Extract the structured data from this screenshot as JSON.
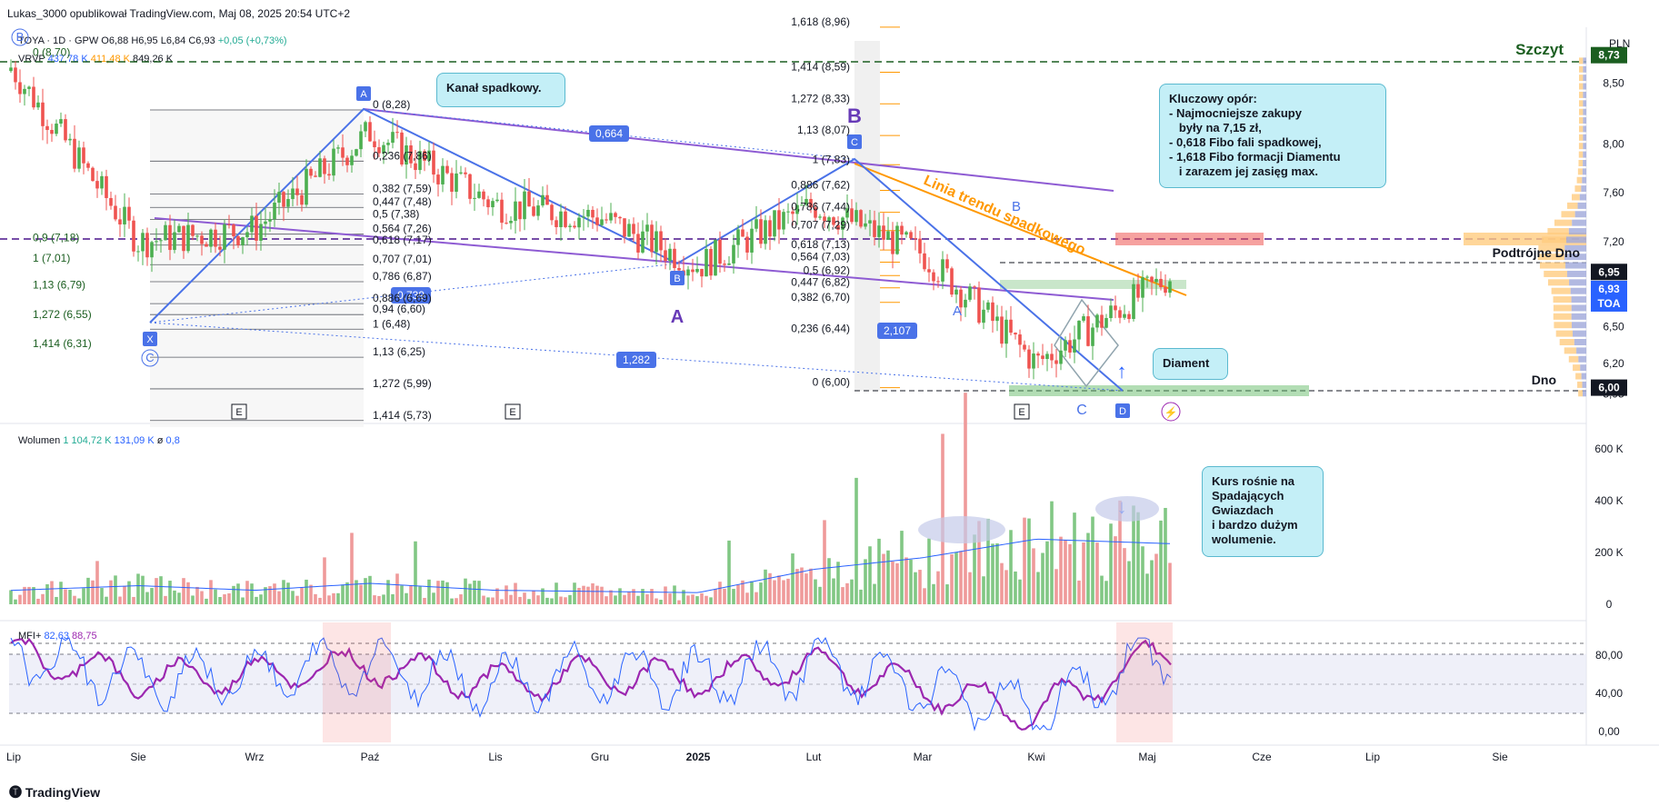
{
  "header": {
    "publisher": "Lukas_3000 opublikował TradingView.com, Maj 08, 2025 20:54 UTC+2",
    "symbol": "TOYA · 1D · GPW",
    "open": "O6,88",
    "high": "H6,95",
    "low": "L6,84",
    "close": "C6,93",
    "change": "+0,05 (+0,73%)",
    "vrvp_label": "VRVP",
    "vrvp_up": "437,78 K",
    "vrvp_down": "411,48 K",
    "vrvp_total": "849,26 K",
    "currency": "PLN"
  },
  "price_axis": {
    "ticks": [
      "8,50",
      "8,00",
      "7,60",
      "7,20",
      "6,80",
      "6,50",
      "6,20",
      "5,95"
    ],
    "badges": [
      {
        "label": "8,73",
        "color": "#1b5e20"
      },
      {
        "label": "6,95",
        "color": "#131722"
      },
      {
        "label": "6,93",
        "color": "#2962ff"
      },
      {
        "label": "TOA",
        "color": "#2962ff"
      },
      {
        "label": "6,00",
        "color": "#131722"
      }
    ]
  },
  "time_axis": [
    "Lip",
    "Sie",
    "Wrz",
    "Paź",
    "Lis",
    "Gru",
    "2025",
    "Lut",
    "Mar",
    "Kwi",
    "Maj",
    "Cze",
    "Lip",
    "Sie"
  ],
  "annotations": {
    "szczyt": "Szczyt",
    "podtrojne": "Podtrójne Dno",
    "dno": "Dno",
    "kanal": "Kanał spadkowy.",
    "linia": "Linia trendu spadkowego",
    "diament": "Diament",
    "opor_lines": [
      "Kluczowy opór:",
      "- Najmocniejsze zakupy",
      "   były na 7,15 zł,",
      "- 0,618 Fibo fali spadkowej,",
      "- 1,618 Fibo formacji Diamentu",
      "   i zarazem jej zasięg max."
    ],
    "kurs_lines": [
      "Kurs rośnie na",
      "Spadających",
      "Gwiazdach",
      "i bardzo dużym",
      "wolumenie."
    ],
    "wave_labels": {
      "B": "B",
      "A": "A",
      "A2": "A",
      "B2": "B",
      "C": "C"
    },
    "pill_labels": {
      "p1": "0,664",
      "p2": "0,739",
      "p3": "1,282",
      "p4": "2,107"
    },
    "point_labels": {
      "X": "X",
      "A": "A",
      "B": "B",
      "C": "C",
      "D": "D",
      "E": "E"
    }
  },
  "fib_left": [
    "0 (8,70)",
    "0,9 (7,18)",
    "1 (7,01)",
    "1,13 (6,79)",
    "1,272 (6,55)",
    "1,414 (6,31)"
  ],
  "fib_mid1": [
    "0 (8,28)",
    "0,236 (7,86)",
    "0,382 (7,59)",
    "0,447 (7,48)",
    "0,5 (7,38)",
    "0,564 (7,26)",
    "0,618 (7,17)",
    "0,707 (7,01)",
    "0,786 (6,87)",
    "0,886 (6,69)",
    "0,94 (6,60)",
    "1 (6,48)",
    "1,13 (6,25)",
    "1,272 (5,99)",
    "1,414 (5,73)"
  ],
  "fib_mid2": [
    "1,618 (8,96)",
    "1,414 (8,59)",
    "1,272 (8,33)",
    "1,13 (8,07)",
    "1 (7,83)",
    "0,886 (7,62)",
    "0,786 (7,44)",
    "0,707 (7,29)",
    "0,618 (7,13)",
    "0,564 (7,03)",
    "0,5 (6,92)",
    "0,447 (6,82)",
    "0,382 (6,70)",
    "0,236 (6,44)",
    "0 (6,00)"
  ],
  "volume": {
    "label": "Wolumen",
    "v1": "1",
    "v2": "104,72 K",
    "v3": "131,09 K",
    "v4": "ø",
    "v5": "0,8",
    "ticks": [
      "600 K",
      "400 K",
      "200 K",
      "0"
    ]
  },
  "mfi": {
    "label": "MFI+",
    "v1": "82,63",
    "v2": "88,75",
    "ticks": [
      "80,00",
      "40,00",
      "0,00"
    ]
  },
  "brand": "TradingView",
  "chart_data": {
    "type": "candlestick",
    "title": "TOYA · 1D · GPW",
    "ylim": [
      5.9,
      8.75
    ],
    "x_range": [
      "Lip 2024",
      "Sie 2025"
    ],
    "series": [
      {
        "name": "close_approx",
        "x": [
          "Lip",
          "Sie",
          "Wrz",
          "Paź",
          "Lis",
          "Gru",
          "2025",
          "Lut",
          "Mar",
          "Kwi",
          "Maj"
        ],
        "values": [
          8.6,
          7.2,
          7.3,
          8.1,
          7.5,
          7.4,
          7.0,
          7.5,
          7.1,
          6.2,
          6.93
        ]
      }
    ],
    "levels": {
      "szczyt": 8.73,
      "podtrojne_dno": 6.95,
      "dno": 6.0,
      "resistance": 7.15
    },
    "volume": {
      "series": [
        {
          "name": "Wolumen",
          "x": [
            "Lip",
            "Sie",
            "Wrz",
            "Paź",
            "Lis",
            "Gru",
            "2025",
            "Lut",
            "Mar",
            "Kwi",
            "Maj"
          ],
          "values": [
            60000,
            80000,
            60000,
            90000,
            60000,
            55000,
            50000,
            150000,
            200000,
            280000,
            260000
          ]
        }
      ],
      "ylim": [
        0,
        650000
      ]
    },
    "mfi": {
      "series": [
        {
          "name": "MFI+",
          "values": [
            82,
            55,
            60,
            70,
            50,
            60,
            55,
            70,
            45,
            20,
            88.75
          ]
        }
      ],
      "ylim": [
        0,
        100
      ]
    }
  }
}
